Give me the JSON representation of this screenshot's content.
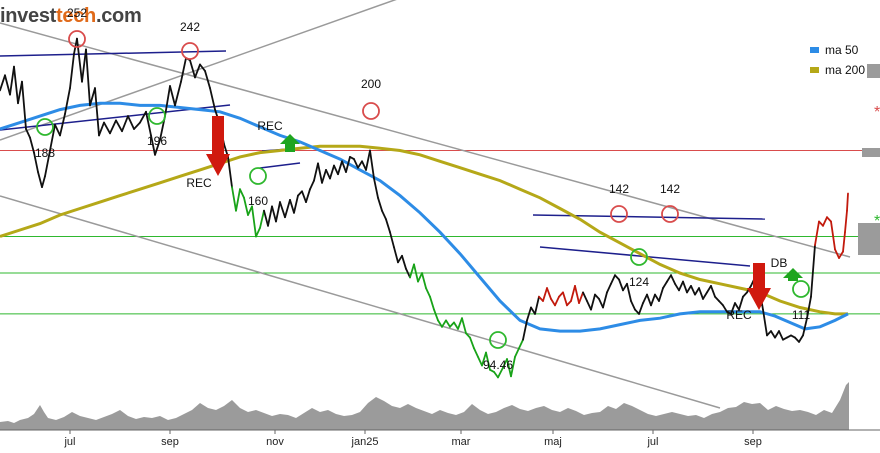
{
  "logo": {
    "part1": "invest",
    "part2": "tech",
    "part3": ".com"
  },
  "legend": [
    {
      "label": "ma  50",
      "color": "#2d8ce6"
    },
    {
      "label": "ma  200",
      "color": "#b5a818"
    }
  ],
  "colors": {
    "price": "#111111",
    "price_up": "#c21a0d",
    "price_down": "#19a319",
    "ma50": "#2d8ce6",
    "ma200": "#b5a818",
    "trend_channel": "#9a9a9a",
    "triangle": "#1d1f8c",
    "support": "#2fb82f",
    "resistance": "#d94c4c",
    "volume": "#9b9b9b",
    "arrow_down": "#d0190e",
    "arrow_up": "#1fa51f"
  },
  "chart_data": {
    "type": "line",
    "title": "",
    "xlabel": "",
    "ylabel": "",
    "x_ticks": [
      "jul",
      "sep",
      "nov",
      "jan25",
      "mar",
      "maj",
      "jul",
      "sep"
    ],
    "ylim": [
      70,
      270
    ],
    "price_labels": [
      {
        "text": "252",
        "kind": "top"
      },
      {
        "text": "242",
        "kind": "top"
      },
      {
        "text": "200",
        "kind": "top"
      },
      {
        "text": "142",
        "kind": "top"
      },
      {
        "text": "142",
        "kind": "top"
      },
      {
        "text": "188",
        "kind": "bottom"
      },
      {
        "text": "196",
        "kind": "bottom"
      },
      {
        "text": "160",
        "kind": "bottom"
      },
      {
        "text": "94.46",
        "kind": "bottom"
      },
      {
        "text": "124",
        "kind": "bottom"
      },
      {
        "text": "111",
        "kind": "bottom"
      }
    ],
    "signals": [
      {
        "text": "REC",
        "kind": "sell"
      },
      {
        "text": "REC",
        "kind": "buy"
      },
      {
        "text": "REC",
        "kind": "sell"
      },
      {
        "text": "DB",
        "kind": "buy"
      }
    ],
    "horizontal_levels": [
      {
        "value": 200,
        "kind": "resistance"
      },
      {
        "value": 160,
        "kind": "support"
      },
      {
        "value": 143,
        "kind": "support"
      },
      {
        "value": 124,
        "kind": "support"
      }
    ],
    "price": [
      [
        0,
        228
      ],
      [
        5,
        235
      ],
      [
        10,
        226
      ],
      [
        14,
        239
      ],
      [
        18,
        222
      ],
      [
        22,
        232
      ],
      [
        26,
        210
      ],
      [
        30,
        206
      ],
      [
        34,
        199
      ],
      [
        38,
        190
      ],
      [
        42,
        183
      ],
      [
        45,
        188
      ],
      [
        50,
        200
      ],
      [
        55,
        212
      ],
      [
        60,
        207
      ],
      [
        65,
        217
      ],
      [
        70,
        229
      ],
      [
        74,
        245
      ],
      [
        77,
        252
      ],
      [
        82,
        232
      ],
      [
        86,
        247
      ],
      [
        90,
        221
      ],
      [
        95,
        229
      ],
      [
        99,
        207
      ],
      [
        104,
        213
      ],
      [
        110,
        208
      ],
      [
        116,
        214
      ],
      [
        122,
        209
      ],
      [
        128,
        216
      ],
      [
        134,
        210
      ],
      [
        140,
        213
      ],
      [
        146,
        218
      ],
      [
        151,
        207
      ],
      [
        155,
        198
      ],
      [
        160,
        205
      ],
      [
        165,
        216
      ],
      [
        170,
        230
      ],
      [
        175,
        221
      ],
      [
        181,
        232
      ],
      [
        186,
        243
      ],
      [
        190,
        242
      ],
      [
        195,
        234
      ],
      [
        200,
        240
      ],
      [
        205,
        237
      ],
      [
        210,
        229
      ],
      [
        215,
        219
      ],
      [
        220,
        212
      ],
      [
        224,
        203
      ],
      [
        228,
        197
      ],
      [
        232,
        183
      ],
      [
        236,
        172
      ],
      [
        240,
        182
      ],
      [
        244,
        178
      ],
      [
        248,
        170
      ],
      [
        252,
        174
      ],
      [
        256,
        160
      ],
      [
        260,
        164
      ],
      [
        264,
        172
      ],
      [
        268,
        165
      ],
      [
        272,
        174
      ],
      [
        276,
        167
      ],
      [
        280,
        176
      ],
      [
        285,
        169
      ],
      [
        290,
        177
      ],
      [
        294,
        171
      ],
      [
        298,
        179
      ],
      [
        302,
        181
      ],
      [
        306,
        176
      ],
      [
        310,
        182
      ],
      [
        314,
        186
      ],
      [
        318,
        194
      ],
      [
        322,
        185
      ],
      [
        326,
        191
      ],
      [
        330,
        187
      ],
      [
        334,
        193
      ],
      [
        338,
        189
      ],
      [
        342,
        195
      ],
      [
        346,
        190
      ],
      [
        350,
        197
      ],
      [
        354,
        196
      ],
      [
        358,
        192
      ],
      [
        362,
        195
      ],
      [
        366,
        191
      ],
      [
        370,
        200
      ],
      [
        374,
        187
      ],
      [
        378,
        178
      ],
      [
        382,
        172
      ],
      [
        386,
        168
      ],
      [
        390,
        162
      ],
      [
        394,
        155
      ],
      [
        398,
        148
      ],
      [
        402,
        151
      ],
      [
        406,
        145
      ],
      [
        410,
        141
      ],
      [
        414,
        147
      ],
      [
        418,
        139
      ],
      [
        422,
        143
      ],
      [
        426,
        136
      ],
      [
        430,
        132
      ],
      [
        434,
        126
      ],
      [
        438,
        121
      ],
      [
        442,
        118
      ],
      [
        446,
        121
      ],
      [
        450,
        118
      ],
      [
        454,
        120
      ],
      [
        458,
        117
      ],
      [
        462,
        122
      ],
      [
        466,
        115
      ],
      [
        470,
        113
      ],
      [
        474,
        108
      ],
      [
        478,
        104
      ],
      [
        482,
        100
      ],
      [
        486,
        106
      ],
      [
        490,
        98
      ],
      [
        494,
        97
      ],
      [
        498,
        94.46
      ],
      [
        503,
        99
      ],
      [
        507,
        103
      ],
      [
        511,
        95
      ],
      [
        515,
        104
      ],
      [
        519,
        108
      ],
      [
        523,
        112
      ],
      [
        527,
        121
      ],
      [
        531,
        127
      ],
      [
        535,
        124
      ],
      [
        539,
        132
      ],
      [
        543,
        130
      ],
      [
        547,
        136
      ],
      [
        551,
        131
      ],
      [
        555,
        128
      ],
      [
        559,
        132
      ],
      [
        563,
        134
      ],
      [
        567,
        128
      ],
      [
        571,
        130
      ],
      [
        575,
        137
      ],
      [
        579,
        129
      ],
      [
        583,
        134
      ],
      [
        587,
        130
      ],
      [
        591,
        126
      ],
      [
        595,
        133
      ],
      [
        599,
        131
      ],
      [
        603,
        127
      ],
      [
        607,
        134
      ],
      [
        611,
        138
      ],
      [
        615,
        142
      ],
      [
        619,
        140
      ],
      [
        623,
        135
      ],
      [
        627,
        138
      ],
      [
        631,
        130
      ],
      [
        635,
        126
      ],
      [
        639,
        124
      ],
      [
        643,
        129
      ],
      [
        647,
        133
      ],
      [
        651,
        128
      ],
      [
        655,
        133
      ],
      [
        659,
        130
      ],
      [
        663,
        136
      ],
      [
        667,
        139
      ],
      [
        671,
        142
      ],
      [
        675,
        138
      ],
      [
        679,
        135
      ],
      [
        683,
        139
      ],
      [
        687,
        134
      ],
      [
        691,
        137
      ],
      [
        695,
        133
      ],
      [
        699,
        136
      ],
      [
        703,
        131
      ],
      [
        707,
        134
      ],
      [
        711,
        137
      ],
      [
        715,
        132
      ],
      [
        719,
        130
      ],
      [
        723,
        128
      ],
      [
        727,
        125
      ],
      [
        731,
        124
      ],
      [
        735,
        129
      ],
      [
        739,
        126
      ],
      [
        743,
        132
      ],
      [
        747,
        134
      ],
      [
        751,
        137
      ],
      [
        755,
        141
      ],
      [
        759,
        137
      ],
      [
        763,
        126
      ],
      [
        767,
        114
      ],
      [
        771,
        116
      ],
      [
        775,
        113
      ],
      [
        779,
        116
      ],
      [
        783,
        112
      ],
      [
        787,
        113
      ],
      [
        791,
        114
      ],
      [
        795,
        113
      ],
      [
        799,
        111
      ],
      [
        803,
        114
      ],
      [
        807,
        122
      ],
      [
        811,
        132
      ],
      [
        815,
        156
      ],
      [
        819,
        167
      ],
      [
        823,
        165
      ],
      [
        827,
        169
      ],
      [
        831,
        167
      ],
      [
        835,
        154
      ],
      [
        839,
        150
      ],
      [
        843,
        153
      ],
      [
        845,
        162
      ],
      [
        847,
        172
      ],
      [
        848,
        180
      ]
    ],
    "ma50": [
      [
        0,
        210
      ],
      [
        20,
        213
      ],
      [
        40,
        216
      ],
      [
        60,
        219
      ],
      [
        80,
        221
      ],
      [
        100,
        222
      ],
      [
        120,
        222
      ],
      [
        140,
        221
      ],
      [
        160,
        221
      ],
      [
        180,
        220
      ],
      [
        200,
        219
      ],
      [
        220,
        218
      ],
      [
        240,
        215
      ],
      [
        260,
        211
      ],
      [
        280,
        207
      ],
      [
        300,
        204
      ],
      [
        320,
        200
      ],
      [
        340,
        196
      ],
      [
        360,
        191
      ],
      [
        380,
        186
      ],
      [
        400,
        179
      ],
      [
        420,
        171
      ],
      [
        440,
        162
      ],
      [
        460,
        152
      ],
      [
        480,
        141
      ],
      [
        500,
        130
      ],
      [
        520,
        121
      ],
      [
        540,
        117
      ],
      [
        560,
        116
      ],
      [
        580,
        116
      ],
      [
        600,
        117
      ],
      [
        620,
        119
      ],
      [
        640,
        121
      ],
      [
        660,
        122
      ],
      [
        680,
        124
      ],
      [
        700,
        125
      ],
      [
        720,
        125
      ],
      [
        740,
        125
      ],
      [
        760,
        125
      ],
      [
        775,
        123
      ],
      [
        790,
        120
      ],
      [
        805,
        117
      ],
      [
        820,
        118
      ],
      [
        835,
        121
      ],
      [
        848,
        124
      ]
    ],
    "ma200": [
      [
        0,
        160
      ],
      [
        20,
        163
      ],
      [
        40,
        166
      ],
      [
        60,
        170
      ],
      [
        80,
        173
      ],
      [
        100,
        176
      ],
      [
        120,
        179
      ],
      [
        140,
        182
      ],
      [
        160,
        185
      ],
      [
        180,
        188
      ],
      [
        200,
        191
      ],
      [
        220,
        194
      ],
      [
        240,
        197
      ],
      [
        260,
        199
      ],
      [
        280,
        200
      ],
      [
        300,
        201
      ],
      [
        320,
        202
      ],
      [
        340,
        202
      ],
      [
        360,
        202
      ],
      [
        380,
        201
      ],
      [
        400,
        200
      ],
      [
        420,
        198
      ],
      [
        440,
        195
      ],
      [
        460,
        192
      ],
      [
        480,
        189
      ],
      [
        500,
        186
      ],
      [
        520,
        182
      ],
      [
        540,
        178
      ],
      [
        560,
        173
      ],
      [
        580,
        168
      ],
      [
        600,
        162
      ],
      [
        620,
        157
      ],
      [
        640,
        152
      ],
      [
        660,
        147
      ],
      [
        680,
        143
      ],
      [
        700,
        140
      ],
      [
        720,
        138
      ],
      [
        740,
        136
      ],
      [
        760,
        134
      ],
      [
        780,
        130
      ],
      [
        800,
        127
      ],
      [
        820,
        125
      ],
      [
        835,
        124
      ],
      [
        848,
        124
      ]
    ],
    "volume": [
      [
        0,
        8
      ],
      [
        8,
        9
      ],
      [
        14,
        7
      ],
      [
        20,
        10
      ],
      [
        28,
        12
      ],
      [
        34,
        16
      ],
      [
        40,
        25
      ],
      [
        44,
        18
      ],
      [
        48,
        12
      ],
      [
        56,
        10
      ],
      [
        64,
        13
      ],
      [
        72,
        18
      ],
      [
        80,
        14
      ],
      [
        88,
        12
      ],
      [
        96,
        10
      ],
      [
        104,
        13
      ],
      [
        112,
        16
      ],
      [
        120,
        20
      ],
      [
        128,
        14
      ],
      [
        136,
        11
      ],
      [
        144,
        13
      ],
      [
        152,
        12
      ],
      [
        160,
        14
      ],
      [
        168,
        10
      ],
      [
        176,
        12
      ],
      [
        184,
        16
      ],
      [
        192,
        20
      ],
      [
        200,
        27
      ],
      [
        208,
        22
      ],
      [
        216,
        20
      ],
      [
        224,
        24
      ],
      [
        232,
        30
      ],
      [
        240,
        22
      ],
      [
        248,
        18
      ],
      [
        256,
        20
      ],
      [
        264,
        17
      ],
      [
        272,
        14
      ],
      [
        280,
        16
      ],
      [
        288,
        15
      ],
      [
        296,
        12
      ],
      [
        304,
        17
      ],
      [
        312,
        22
      ],
      [
        320,
        18
      ],
      [
        328,
        20
      ],
      [
        336,
        16
      ],
      [
        344,
        14
      ],
      [
        352,
        15
      ],
      [
        360,
        18
      ],
      [
        368,
        27
      ],
      [
        376,
        33
      ],
      [
        384,
        29
      ],
      [
        392,
        24
      ],
      [
        400,
        22
      ],
      [
        408,
        26
      ],
      [
        416,
        22
      ],
      [
        424,
        19
      ],
      [
        432,
        16
      ],
      [
        440,
        20
      ],
      [
        448,
        17
      ],
      [
        456,
        15
      ],
      [
        464,
        18
      ],
      [
        472,
        26
      ],
      [
        480,
        20
      ],
      [
        488,
        16
      ],
      [
        496,
        18
      ],
      [
        504,
        22
      ],
      [
        512,
        25
      ],
      [
        520,
        21
      ],
      [
        528,
        19
      ],
      [
        536,
        22
      ],
      [
        544,
        24
      ],
      [
        552,
        20
      ],
      [
        560,
        18
      ],
      [
        568,
        22
      ],
      [
        576,
        19
      ],
      [
        584,
        15
      ],
      [
        592,
        17
      ],
      [
        600,
        18
      ],
      [
        608,
        24
      ],
      [
        616,
        21
      ],
      [
        624,
        27
      ],
      [
        632,
        24
      ],
      [
        640,
        20
      ],
      [
        648,
        16
      ],
      [
        656,
        14
      ],
      [
        664,
        16
      ],
      [
        672,
        18
      ],
      [
        680,
        16
      ],
      [
        688,
        14
      ],
      [
        696,
        15
      ],
      [
        704,
        12
      ],
      [
        712,
        16
      ],
      [
        720,
        18
      ],
      [
        728,
        22
      ],
      [
        736,
        23
      ],
      [
        744,
        28
      ],
      [
        752,
        26
      ],
      [
        760,
        27
      ],
      [
        768,
        20
      ],
      [
        776,
        24
      ],
      [
        784,
        21
      ],
      [
        792,
        19
      ],
      [
        800,
        20
      ],
      [
        808,
        18
      ],
      [
        816,
        15
      ],
      [
        824,
        20
      ],
      [
        832,
        17
      ],
      [
        840,
        30
      ],
      [
        846,
        45
      ],
      [
        849,
        48
      ]
    ]
  }
}
